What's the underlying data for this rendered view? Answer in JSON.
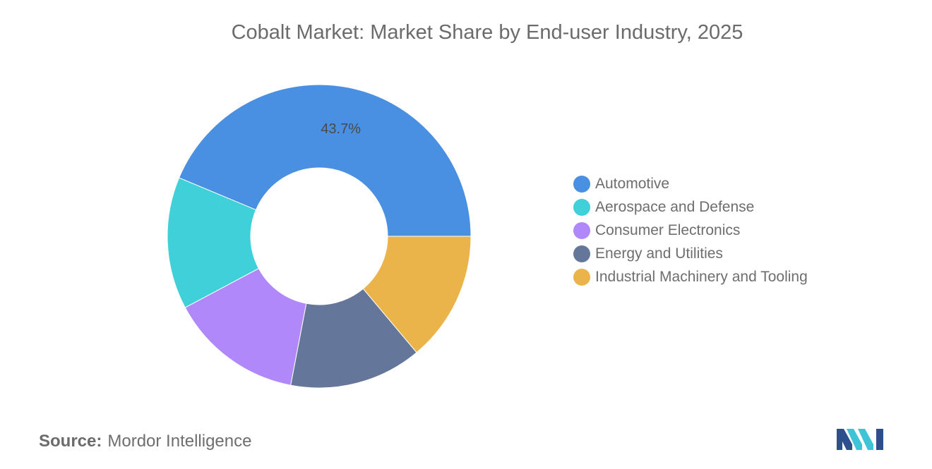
{
  "chart_data": {
    "type": "pie",
    "style": "donut",
    "title": "Cobalt Market: Market Share by End-user Industry, 2025",
    "categories": [
      "Automotive",
      "Aerospace and Defense",
      "Consumer Electronics",
      "Energy and Utilities",
      "Industrial Machinery and Tooling"
    ],
    "values": [
      43.7,
      14.1,
      14.2,
      14.1,
      13.9
    ],
    "colors": [
      "#4a90e2",
      "#3fd0d9",
      "#b088f9",
      "#64779a",
      "#ebb44b"
    ],
    "data_labels": {
      "Automotive": "43.7%"
    },
    "legend_position": "right"
  },
  "source": {
    "label": "Source:",
    "value": "Mordor Intelligence"
  }
}
